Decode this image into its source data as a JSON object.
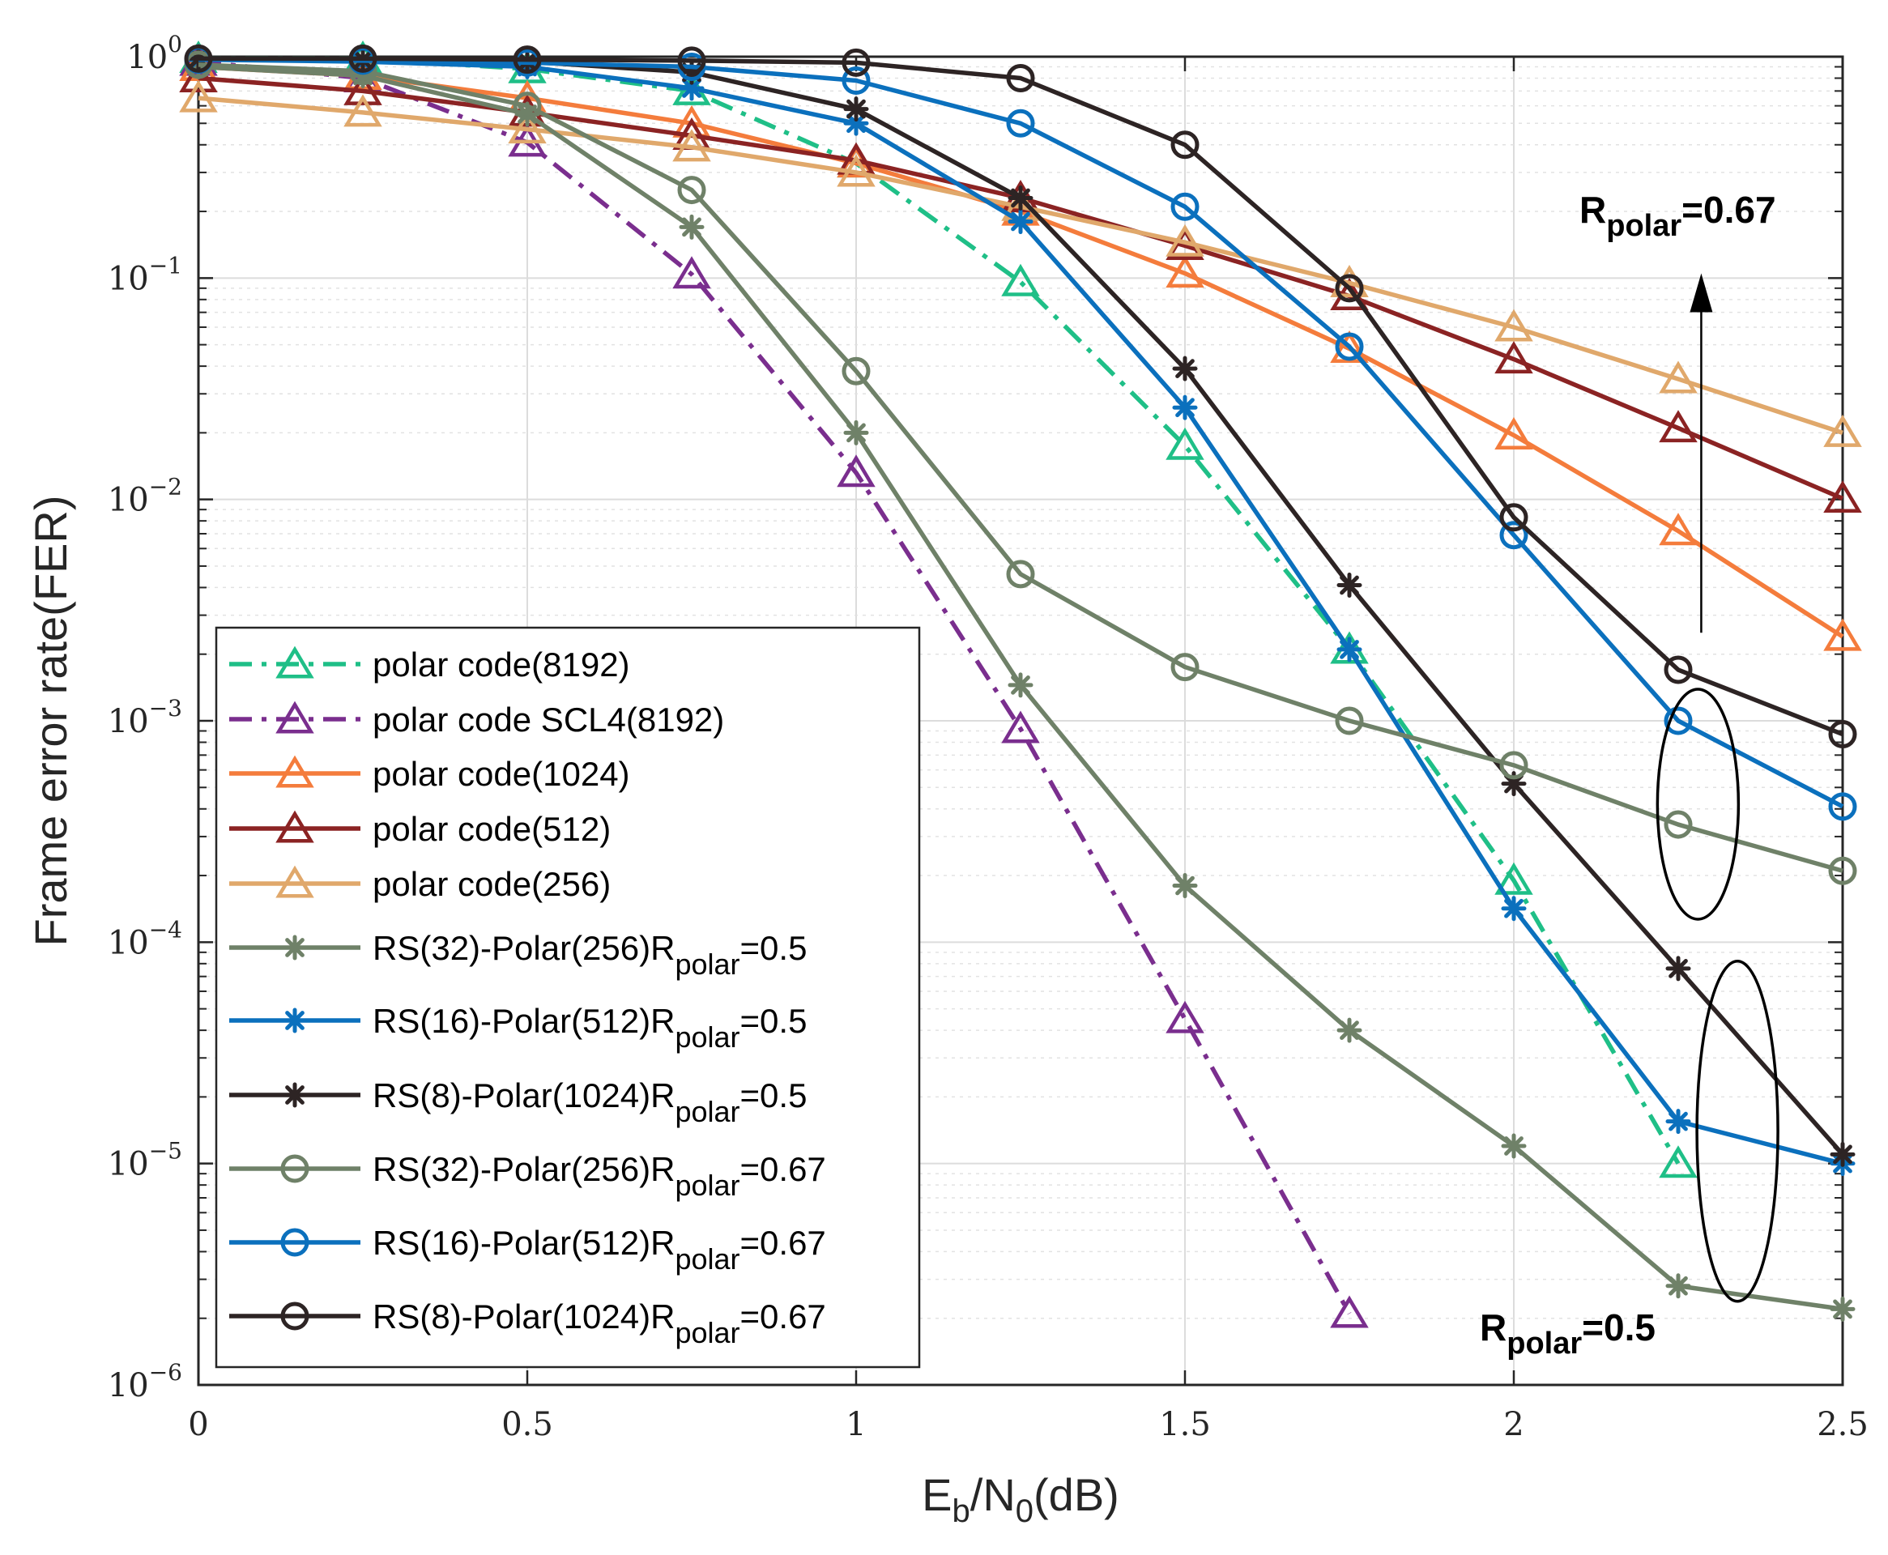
{
  "chart_data": {
    "type": "line",
    "xlabel": {
      "main": "E",
      "sub": "b",
      "mid": "/N",
      "sub2": "0",
      "tail": "(dB)"
    },
    "ylabel": "Frame error rate(FER)",
    "xlim": [
      0,
      2.5
    ],
    "ylim_log10": [
      -6,
      0
    ],
    "grid": true,
    "legend_position": "bottom-left",
    "x_ticks": [
      0,
      0.5,
      1,
      1.5,
      2,
      2.5
    ],
    "x_tick_labels": [
      "0",
      "0.5",
      "1",
      "1.5",
      "2",
      "2.5"
    ],
    "y_tick_exponents": [
      0,
      -1,
      -2,
      -3,
      -4,
      -5,
      -6
    ],
    "y_tick_base": "10",
    "y_tick_exp_labels": [
      "0",
      "−1",
      "−2",
      "−3",
      "−4",
      "−5",
      "−6"
    ],
    "series": [
      {
        "id": "p8192",
        "name": "polar code(8192)",
        "sub": "",
        "tail": "",
        "color": "#1fbf87",
        "dash": "28,12,6,12",
        "marker": "triangle",
        "x": [
          0,
          0.25,
          0.5,
          0.75,
          1,
          1.25,
          1.5,
          1.75,
          2,
          2.25
        ],
        "y": [
          0.98,
          0.98,
          0.88,
          0.7,
          0.33,
          0.096,
          0.0175,
          0.0021,
          0.00019,
          1e-05
        ]
      },
      {
        "id": "scl4",
        "name": "polar code SCL4(8192)",
        "sub": "",
        "tail": "",
        "color": "#7a2e8e",
        "dash": "28,12,6,12",
        "marker": "triangle",
        "x": [
          0,
          0.25,
          0.5,
          0.75,
          1,
          1.25,
          1.5,
          1.75
        ],
        "y": [
          0.95,
          0.8,
          0.41,
          0.104,
          0.0132,
          0.00092,
          4.5e-05,
          2.1e-06
        ]
      },
      {
        "id": "p1024",
        "name": "polar code(1024)",
        "sub": "",
        "tail": "",
        "color": "#f47c3c",
        "dash": "",
        "marker": "triangle",
        "x": [
          0,
          0.25,
          0.5,
          0.75,
          1,
          1.25,
          1.5,
          1.75,
          2,
          2.25,
          2.5
        ],
        "y": [
          0.9,
          0.82,
          0.65,
          0.5,
          0.33,
          0.2,
          0.105,
          0.048,
          0.0195,
          0.0072,
          0.0024
        ]
      },
      {
        "id": "p512",
        "name": "polar code(512)",
        "sub": "",
        "tail": "",
        "color": "#8b2323",
        "dash": "",
        "marker": "triangle",
        "x": [
          0,
          0.25,
          0.5,
          0.75,
          1,
          1.25,
          1.5,
          1.75,
          2,
          2.25,
          2.5
        ],
        "y": [
          0.8,
          0.7,
          0.56,
          0.44,
          0.34,
          0.23,
          0.14,
          0.083,
          0.043,
          0.021,
          0.0101
        ]
      },
      {
        "id": "p256",
        "name": "polar code(256)",
        "sub": "",
        "tail": "",
        "color": "#e0a86b",
        "dash": "",
        "marker": "triangle",
        "x": [
          0,
          0.25,
          0.5,
          0.75,
          1,
          1.25,
          1.5,
          1.75,
          2,
          2.25,
          2.5
        ],
        "y": [
          0.65,
          0.56,
          0.47,
          0.39,
          0.3,
          0.21,
          0.145,
          0.095,
          0.06,
          0.035,
          0.02
        ]
      },
      {
        "id": "rs32_05",
        "name": "RS(32)-Polar(256)R",
        "sub": "polar",
        "tail": "=0.5",
        "color": "#6f8168",
        "dash": "",
        "marker": "star",
        "x": [
          0,
          0.25,
          0.5,
          0.75,
          1,
          1.25,
          1.5,
          1.75,
          2,
          2.25,
          2.5
        ],
        "y": [
          0.9,
          0.82,
          0.55,
          0.17,
          0.02,
          0.00145,
          0.00018,
          4e-05,
          1.2e-05,
          2.8e-06,
          2.2e-06
        ]
      },
      {
        "id": "rs16_05",
        "name": "RS(16)-Polar(512)R",
        "sub": "polar",
        "tail": "=0.5",
        "color": "#0b70bd",
        "dash": "",
        "marker": "star",
        "x": [
          0,
          0.25,
          0.5,
          0.75,
          1,
          1.25,
          1.5,
          1.75,
          2,
          2.25,
          2.5
        ],
        "y": [
          0.97,
          0.95,
          0.9,
          0.72,
          0.5,
          0.18,
          0.026,
          0.0021,
          0.000142,
          1.55e-05,
          1e-05
        ]
      },
      {
        "id": "rs8_05",
        "name": "RS(8)-Polar(1024)R",
        "sub": "polar",
        "tail": "=0.5",
        "color": "#2d2424",
        "dash": "",
        "marker": "star",
        "x": [
          0,
          0.25,
          0.5,
          0.75,
          1,
          1.25,
          1.5,
          1.75,
          2,
          2.25,
          2.5
        ],
        "y": [
          0.98,
          0.97,
          0.95,
          0.85,
          0.58,
          0.23,
          0.039,
          0.0041,
          0.00052,
          7.6e-05,
          1.1e-05
        ]
      },
      {
        "id": "rs32_067",
        "name": "RS(32)-Polar(256)R",
        "sub": "polar",
        "tail": "=0.67",
        "color": "#6f8168",
        "dash": "",
        "marker": "circle",
        "x": [
          0,
          0.25,
          0.5,
          0.75,
          1,
          1.25,
          1.5,
          1.75,
          2,
          2.25,
          2.5
        ],
        "y": [
          0.92,
          0.86,
          0.6,
          0.25,
          0.038,
          0.0046,
          0.00175,
          0.001,
          0.00063,
          0.00034,
          0.00021
        ]
      },
      {
        "id": "rs16_067",
        "name": "RS(16)-Polar(512)R",
        "sub": "polar",
        "tail": "=0.67",
        "color": "#0b70bd",
        "dash": "",
        "marker": "circle",
        "x": [
          0,
          0.25,
          0.5,
          0.75,
          1,
          1.25,
          1.5,
          1.75,
          2,
          2.25,
          2.5
        ],
        "y": [
          0.97,
          0.96,
          0.94,
          0.9,
          0.78,
          0.5,
          0.21,
          0.049,
          0.0069,
          0.001,
          0.00041
        ]
      },
      {
        "id": "rs8_067",
        "name": "RS(8)-Polar(1024)R",
        "sub": "polar",
        "tail": "=0.67",
        "color": "#2d2424",
        "dash": "",
        "marker": "circle",
        "x": [
          0,
          0.25,
          0.5,
          0.75,
          1,
          1.25,
          1.5,
          1.75,
          2,
          2.25,
          2.5
        ],
        "y": [
          0.98,
          0.98,
          0.97,
          0.96,
          0.94,
          0.8,
          0.4,
          0.09,
          0.0083,
          0.0017,
          0.00087
        ]
      }
    ],
    "annotations": [
      {
        "id": "r067",
        "main": "R",
        "sub": "polar",
        "tail": "=0.67"
      },
      {
        "id": "r05",
        "main": "R",
        "sub": "polar",
        "tail": "=0.5"
      }
    ]
  }
}
